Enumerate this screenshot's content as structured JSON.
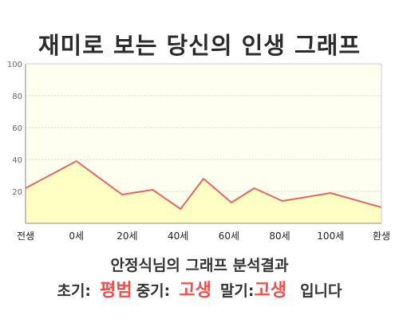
{
  "title": "재미로 보는 당신의 인생 그래프",
  "summary": {
    "heading": "안정식님의 그래프 분석결과",
    "early_label": "초기:",
    "early_value": "평범",
    "middle_label": "중기:",
    "middle_value": "고생",
    "late_label": "말기:",
    "late_value": "고생",
    "suffix": "입니다"
  },
  "colors": {
    "line": "#e06666",
    "fill": "#ffffc4",
    "plot_bg": "#fffff0",
    "accent": "#e8534f"
  },
  "chart_data": {
    "type": "area",
    "title": "",
    "xlabel": "",
    "ylabel": "",
    "ylim": [
      0,
      100
    ],
    "yticks": [
      20,
      40,
      60,
      80,
      100
    ],
    "x_tick_labels": [
      "전생",
      "0세",
      "20세",
      "40세",
      "60세",
      "80세",
      "100세",
      "환생"
    ],
    "grid": true,
    "series": [
      {
        "values": [
          22,
          39,
          18,
          21,
          9,
          28,
          13,
          22,
          14,
          19,
          10
        ],
        "x_positions": [
          0,
          1,
          1.9,
          2.5,
          3.05,
          3.5,
          4.05,
          4.5,
          5.05,
          6.0,
          7.0
        ]
      }
    ]
  }
}
